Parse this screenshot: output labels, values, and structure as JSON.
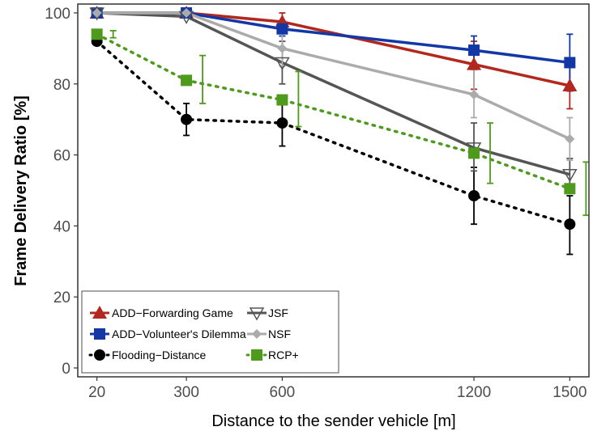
{
  "chart_data": {
    "type": "line",
    "title": "",
    "xlabel": "Distance to the sender vehicle [m]",
    "ylabel": "Frame Delivery Ratio [%]",
    "x": [
      20,
      300,
      600,
      1200,
      1500
    ],
    "x_tick_labels": [
      "20",
      "300",
      "600",
      "1200",
      "1500"
    ],
    "y_ticks": [
      0,
      20,
      40,
      60,
      80,
      100
    ],
    "y_tick_labels": [
      "0",
      "20",
      "40",
      "60",
      "80",
      "100"
    ],
    "xlim": [
      -40,
      1560
    ],
    "ylim": [
      -2.5,
      102.5
    ],
    "grid": false,
    "legend_position": "bottom-left",
    "series": [
      {
        "name": "ADD−Forwarding Game",
        "color": "#b2281e",
        "marker": "triangle",
        "line": "solid",
        "dodge": 0,
        "values": [
          100,
          100,
          97.5,
          85.5,
          79.5
        ],
        "err_low": [
          100,
          100,
          94.5,
          78.5,
          73
        ],
        "err_high": [
          100,
          100,
          100,
          92,
          86
        ]
      },
      {
        "name": "ADD−Volunteer's Dilemma",
        "color": "#1338a6",
        "marker": "square",
        "line": "solid",
        "dodge": 0,
        "values": [
          100,
          100,
          95.5,
          89.5,
          86
        ],
        "err_low": [
          100,
          100,
          93.5,
          84.5,
          78
        ],
        "err_high": [
          100,
          100,
          97.5,
          93.5,
          94
        ]
      },
      {
        "name": "Flooding−Distance",
        "color": "#000000",
        "marker": "circle",
        "line": "dotted",
        "dodge": 0,
        "values": [
          92,
          70,
          69,
          48.5,
          40.5
        ],
        "err_low": [
          92,
          65.5,
          62.5,
          40.5,
          32
        ],
        "err_high": [
          92,
          74.5,
          75.5,
          56.5,
          48.5
        ]
      },
      {
        "name": "JSF",
        "color": "#555555",
        "marker": "triangle-down",
        "line": "solid",
        "dodge": 0,
        "values": [
          100,
          99,
          86,
          62,
          54.5
        ],
        "err_low": [
          100,
          99,
          80,
          55.5,
          50
        ],
        "err_high": [
          100,
          99,
          92,
          69,
          59
        ]
      },
      {
        "name": "NSF",
        "color": "#ababab",
        "marker": "diamond",
        "line": "solid",
        "dodge": 0,
        "values": [
          100,
          100,
          90,
          77,
          64.5
        ],
        "err_low": [
          100,
          100,
          85,
          70.5,
          58.5
        ],
        "err_high": [
          100,
          100,
          95,
          84,
          70.5
        ]
      },
      {
        "name": "RCP+",
        "color": "#4e9a1d",
        "marker": "square",
        "line": "dotted",
        "dodge": 20,
        "values": [
          94,
          81,
          75.5,
          60.5,
          50.5
        ],
        "err_low": [
          93,
          74.5,
          68,
          52,
          43
        ],
        "err_high": [
          95,
          88,
          83.5,
          69,
          58
        ]
      }
    ]
  }
}
